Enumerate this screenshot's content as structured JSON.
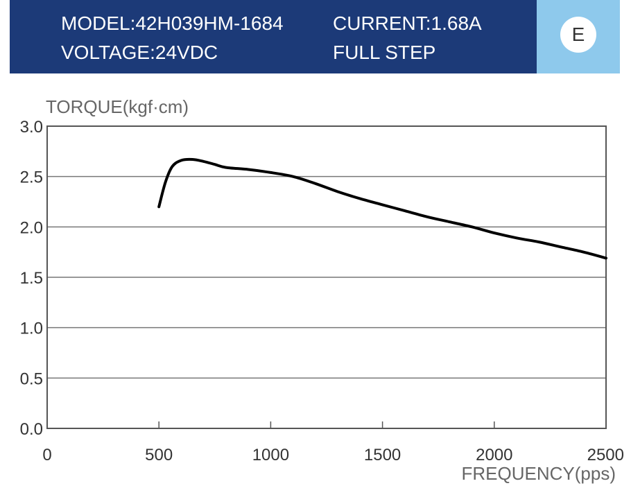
{
  "header": {
    "model": "MODEL:42H039HM-1684",
    "current": "CURRENT:1.68A",
    "voltage": "VOLTAGE:24VDC",
    "step": "FULL STEP",
    "badge": "E",
    "bg_color": "#1c3a78",
    "badge_bg_color": "#8ec9ec"
  },
  "chart_data": {
    "type": "line",
    "title": "",
    "xlabel": "FREQUENCY(pps)",
    "ylabel": "TORQUE(kgf·cm)",
    "xlim": [
      0,
      2500
    ],
    "ylim": [
      0,
      3.0
    ],
    "x_ticks": [
      "0",
      "500",
      "1000",
      "1500",
      "2000",
      "2500"
    ],
    "y_ticks": [
      "0.0",
      "0.5",
      "1.0",
      "1.5",
      "2.0",
      "2.5",
      "3.0"
    ],
    "grid": "horizontal",
    "line_color": "#000000",
    "series": [
      {
        "x": [
          500,
          530,
          560,
          600,
          650,
          700,
          750,
          800,
          900,
          1000,
          1100,
          1200,
          1300,
          1400,
          1500,
          1600,
          1700,
          1800,
          1900,
          2000,
          2100,
          2200,
          2300,
          2400,
          2500
        ],
        "y": [
          2.2,
          2.45,
          2.6,
          2.66,
          2.67,
          2.65,
          2.62,
          2.59,
          2.57,
          2.54,
          2.5,
          2.43,
          2.35,
          2.28,
          2.22,
          2.16,
          2.1,
          2.05,
          2.0,
          1.94,
          1.89,
          1.85,
          1.8,
          1.75,
          1.69
        ]
      }
    ]
  }
}
